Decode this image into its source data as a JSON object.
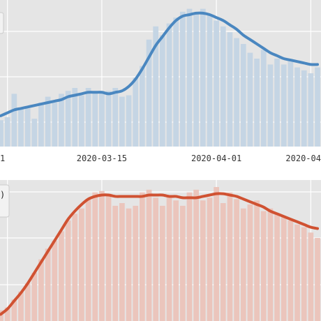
{
  "colors": {
    "panel_background": "#e5e5e5",
    "grid": "#ffffff",
    "top_bar": "#c5d5e4",
    "top_line": "#4a87c0",
    "bottom_bar": "#ebc5bc",
    "bottom_line": "#d05232"
  },
  "chart_data": [
    {
      "type": "bar",
      "title": "",
      "xlabel": "",
      "ylabel": "",
      "x_axis": "date",
      "x_tick_labels": [
        "1",
        "2020-03-15",
        "2020-04-01",
        "2020-04-"
      ],
      "x_tick_dates": [
        "2020-03-01",
        "2020-03-15",
        "2020-04-01",
        "2020-04-15"
      ],
      "ylim": [
        0,
        100
      ],
      "grid": true,
      "legend": "cropped at top-left",
      "dates": [
        "2020-02-29",
        "2020-03-01",
        "2020-03-02",
        "2020-03-03",
        "2020-03-04",
        "2020-03-05",
        "2020-03-06",
        "2020-03-07",
        "2020-03-08",
        "2020-03-09",
        "2020-03-10",
        "2020-03-11",
        "2020-03-12",
        "2020-03-13",
        "2020-03-14",
        "2020-03-15",
        "2020-03-16",
        "2020-03-17",
        "2020-03-18",
        "2020-03-19",
        "2020-03-20",
        "2020-03-21",
        "2020-03-22",
        "2020-03-23",
        "2020-03-24",
        "2020-03-25",
        "2020-03-26",
        "2020-03-27",
        "2020-03-28",
        "2020-03-29",
        "2020-03-30",
        "2020-03-31",
        "2020-04-01",
        "2020-04-02",
        "2020-04-03",
        "2020-04-04",
        "2020-04-05",
        "2020-04-06",
        "2020-04-07",
        "2020-04-08",
        "2020-04-09",
        "2020-04-10",
        "2020-04-11",
        "2020-04-12",
        "2020-04-13",
        "2020-04-14",
        "2020-04-15",
        "2020-04-16"
      ],
      "series": [
        {
          "kind": "bars",
          "values": [
            18,
            20,
            36,
            26,
            26,
            19,
            30,
            34,
            30,
            36,
            38,
            40,
            35,
            40,
            38,
            38,
            38,
            40,
            34,
            35,
            47,
            55,
            73,
            82,
            76,
            84,
            88,
            92,
            94,
            91,
            94,
            90,
            86,
            82,
            78,
            74,
            70,
            64,
            60,
            66,
            56,
            60,
            56,
            58,
            54,
            52,
            50,
            54
          ]
        },
        {
          "kind": "smooth",
          "values": [
            21,
            23,
            25,
            26,
            27,
            28,
            29,
            30,
            31,
            32,
            34,
            35,
            36,
            37,
            37,
            37,
            36,
            37,
            38,
            41,
            46,
            53,
            61,
            69,
            75,
            81,
            86,
            89,
            90,
            91,
            91,
            90,
            88,
            86,
            83,
            80,
            76,
            73,
            70,
            67,
            64,
            62,
            60,
            59,
            58,
            57,
            56,
            56
          ]
        }
      ]
    },
    {
      "type": "bar",
      "title": "",
      "xlabel": "",
      "ylabel": "",
      "ylim": [
        0,
        100
      ],
      "grid": true,
      "legend": "cropped at top-left",
      "legend_visible_text": ")",
      "series": [
        {
          "kind": "bars",
          "values": [
            8,
            10,
            16,
            22,
            28,
            36,
            46,
            54,
            60,
            67,
            75,
            80,
            84,
            91,
            96,
            97,
            95,
            86,
            88,
            84,
            86,
            96,
            98,
            92,
            86,
            94,
            90,
            86,
            96,
            98,
            90,
            92,
            100,
            88,
            96,
            91,
            84,
            87,
            90,
            82,
            84,
            80,
            78,
            75,
            72,
            70,
            66,
            62
          ]
        },
        {
          "kind": "smooth",
          "values": [
            5,
            9,
            15,
            21,
            28,
            36,
            44,
            52,
            60,
            68,
            76,
            82,
            87,
            91,
            93,
            94,
            94,
            93,
            93,
            93,
            93,
            93,
            94,
            94,
            94,
            93,
            93,
            92,
            92,
            92,
            93,
            94,
            95,
            95,
            94,
            93,
            91,
            89,
            87,
            85,
            82,
            80,
            78,
            76,
            74,
            72,
            70,
            69
          ]
        }
      ]
    }
  ]
}
